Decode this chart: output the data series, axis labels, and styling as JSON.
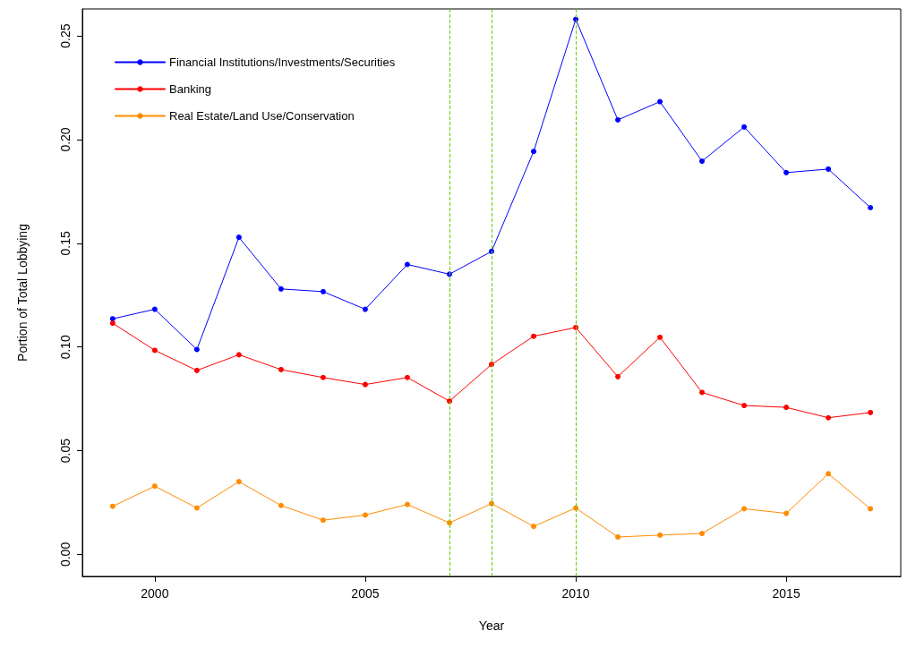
{
  "chart_data": {
    "type": "line",
    "xlabel": "Year",
    "ylabel": "Portion of Total Lobbying",
    "x": [
      1999,
      2000,
      2001,
      2002,
      2003,
      2004,
      2005,
      2006,
      2007,
      2008,
      2009,
      2010,
      2011,
      2012,
      2013,
      2014,
      2015,
      2016,
      2017
    ],
    "series": [
      {
        "name": "Financial Institutions/Investments/Securities",
        "color": "#0000ff",
        "values": [
          0.1136,
          0.1182,
          0.0988,
          0.1529,
          0.128,
          0.1267,
          0.1182,
          0.1398,
          0.1351,
          0.1461,
          0.1943,
          0.258,
          0.2095,
          0.2183,
          0.1896,
          0.2061,
          0.1841,
          0.1858,
          0.1672
        ]
      },
      {
        "name": "Banking",
        "color": "#ff0000",
        "values": [
          0.1115,
          0.0984,
          0.0887,
          0.0963,
          0.0891,
          0.0853,
          0.0819,
          0.0853,
          0.0739,
          0.0916,
          0.1052,
          0.1094,
          0.0857,
          0.1047,
          0.0781,
          0.0718,
          0.0709,
          0.0659,
          0.0684
        ]
      },
      {
        "name": "Real Estate/Land Use/Conservation",
        "color": "#ff8c00",
        "values": [
          0.0232,
          0.0329,
          0.0224,
          0.0351,
          0.0236,
          0.0165,
          0.019,
          0.0241,
          0.0152,
          0.0245,
          0.0135,
          0.0224,
          0.0084,
          0.0093,
          0.0101,
          0.022,
          0.0198,
          0.0389,
          0.022
        ]
      }
    ],
    "xlim": [
      1998.28,
      2017.72
    ],
    "xticks": [
      2000,
      2005,
      2010,
      2015
    ],
    "ylim": [
      -0.0106,
      0.263
    ],
    "yticks": [
      {
        "value": 0,
        "label": "0.00"
      },
      {
        "value": 0.05,
        "label": "0.05"
      },
      {
        "value": 0.1,
        "label": "0.10"
      },
      {
        "value": 0.15,
        "label": "0.15"
      },
      {
        "value": 0.2,
        "label": "0.20"
      },
      {
        "value": 0.25,
        "label": "0.25"
      }
    ],
    "ref_lines": [
      {
        "axis": "x",
        "value": 2007,
        "color": "#66cd00",
        "line_style": "dashed"
      },
      {
        "axis": "x",
        "value": 2008,
        "color": "#66cd00",
        "line_style": "dashed"
      },
      {
        "axis": "x",
        "value": 2010,
        "color": "#66cd00",
        "line_style": "dashed"
      }
    ],
    "legend": "top left",
    "grid": false,
    "marker": "circle",
    "line_style": "solid"
  }
}
